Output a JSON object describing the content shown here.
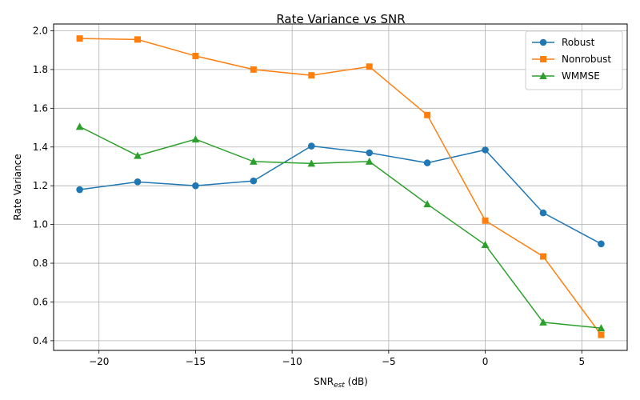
{
  "chart_data": {
    "type": "line",
    "title": "Rate Variance vs SNR",
    "xlabel": "SNR",
    "xlabel_sub": "est",
    "xlabel_unit": " (dB)",
    "ylabel": "Rate Variance",
    "xlim": [
      -22.35,
      7.35
    ],
    "ylim": [
      0.35,
      2.035
    ],
    "x_ticks": [
      -20,
      -15,
      -10,
      -5,
      0,
      5
    ],
    "x_tick_labels": [
      "−20",
      "−15",
      "−10",
      "−5",
      "0",
      "5"
    ],
    "y_ticks": [
      0.4,
      0.6,
      0.8,
      1.0,
      1.2,
      1.4,
      1.6,
      1.8,
      2.0
    ],
    "y_tick_labels": [
      "0.4",
      "0.6",
      "0.8",
      "1.0",
      "1.2",
      "1.4",
      "1.6",
      "1.8",
      "2.0"
    ],
    "grid": true,
    "legend_position": "top-right",
    "x": [
      -21,
      -18,
      -15,
      -12,
      -9,
      -6,
      -3,
      0,
      3,
      6
    ],
    "series": [
      {
        "name": "Robust",
        "color": "#1f77b4",
        "marker": "circle",
        "values": [
          1.18,
          1.22,
          1.2,
          1.225,
          1.405,
          1.37,
          1.318,
          1.385,
          1.06,
          0.9
        ]
      },
      {
        "name": "Nonrobust",
        "color": "#ff7f0e",
        "marker": "square",
        "values": [
          1.96,
          1.955,
          1.87,
          1.8,
          1.77,
          1.815,
          1.565,
          1.02,
          0.835,
          0.43
        ]
      },
      {
        "name": "WMMSE",
        "color": "#2ca02c",
        "marker": "triangle",
        "values": [
          1.505,
          1.355,
          1.44,
          1.325,
          1.315,
          1.325,
          1.105,
          0.895,
          0.495,
          0.465
        ]
      }
    ]
  }
}
